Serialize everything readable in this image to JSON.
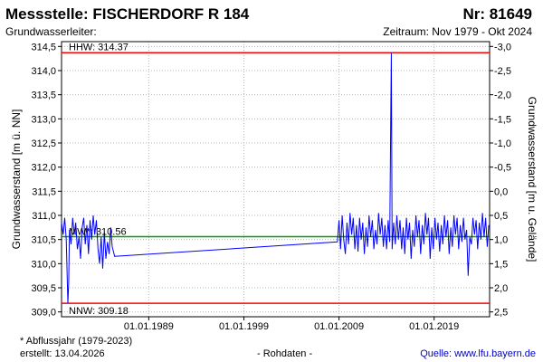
{
  "header": {
    "station_label": "Messstelle: FISCHERDORF R 184",
    "number_label": "Nr: 81649",
    "aquifer_label": "Grundwasserleiter:",
    "period_label": "Zeitraum: Nov 1979 - Okt 2024"
  },
  "footer": {
    "note": "* Abflussjahr (1979-2023)",
    "created": "erstellt:  13.04.2026",
    "rawdata": "- Rohdaten -",
    "source": "Quelle: www.lfu.bayern.de"
  },
  "chart_data": {
    "type": "line",
    "ylabel_left": "Grundwasserstand [m ü. NN]",
    "ylabel_right": "Grundwasserstand [m u. Gelände]",
    "ylim": [
      308.9,
      314.6
    ],
    "yticks_left": [
      "309,0",
      "309,5",
      "310,0",
      "310,5",
      "311,0",
      "311,5",
      "312,0",
      "312,5",
      "313,0",
      "313,5",
      "314,0",
      "314,5"
    ],
    "yticks_right": [
      "2,5",
      "2,0",
      "1,5",
      "1,0",
      "0,5",
      "0,0",
      "-0,5",
      "-1,0",
      "-1,5",
      "-2,0",
      "-2,5",
      "-3,0"
    ],
    "xlim": [
      "1979-11-01",
      "2024-10-31"
    ],
    "xticks": [
      "01.01.1989",
      "01.01.1999",
      "01.01.2009",
      "01.01.2019"
    ],
    "reference_lines": [
      {
        "label": "HHW: 314.37",
        "value": 314.37,
        "color": "#ff0000"
      },
      {
        "label": "MW*: 310.56",
        "value": 310.56,
        "color": "#00a000"
      },
      {
        "label": "NNW: 309.18",
        "value": 309.18,
        "color": "#ff0000"
      }
    ],
    "series": [
      {
        "color": "#0000ff",
        "points": [
          [
            "1979-11-01",
            310.85
          ],
          [
            "1980-01-01",
            310.6
          ],
          [
            "1980-03-01",
            310.95
          ],
          [
            "1980-05-01",
            310.5
          ],
          [
            "1980-07-01",
            309.18
          ],
          [
            "1980-08-01",
            309.6
          ],
          [
            "1980-09-01",
            310.7
          ],
          [
            "1980-11-01",
            310.4
          ],
          [
            "1981-01-01",
            310.95
          ],
          [
            "1981-03-01",
            310.6
          ],
          [
            "1981-05-01",
            310.85
          ],
          [
            "1981-07-01",
            310.3
          ],
          [
            "1981-09-01",
            310.55
          ],
          [
            "1981-11-01",
            310.1
          ],
          [
            "1982-01-01",
            310.75
          ],
          [
            "1982-03-01",
            310.95
          ],
          [
            "1982-05-01",
            310.4
          ],
          [
            "1982-07-01",
            310.8
          ],
          [
            "1982-09-01",
            310.2
          ],
          [
            "1982-11-01",
            310.9
          ],
          [
            "1983-01-01",
            310.5
          ],
          [
            "1983-03-01",
            311.0
          ],
          [
            "1983-05-01",
            310.6
          ],
          [
            "1983-07-01",
            310.9
          ],
          [
            "1983-09-01",
            310.3
          ],
          [
            "1983-11-01",
            310.0
          ],
          [
            "1984-01-01",
            310.55
          ],
          [
            "1984-03-01",
            309.9
          ],
          [
            "1984-05-01",
            310.65
          ],
          [
            "1984-07-01",
            310.1
          ],
          [
            "1984-09-01",
            310.45
          ],
          [
            "1984-11-01",
            310.2
          ],
          [
            "1985-01-01",
            310.75
          ],
          [
            "1985-03-01",
            310.35
          ],
          [
            "1985-06-01",
            310.15
          ],
          [
            "2008-11-01",
            310.45
          ],
          [
            "2009-01-01",
            310.9
          ],
          [
            "2009-03-01",
            310.3
          ],
          [
            "2009-05-01",
            311.0
          ],
          [
            "2009-07-01",
            310.5
          ],
          [
            "2009-09-01",
            310.2
          ],
          [
            "2009-11-01",
            310.85
          ],
          [
            "2010-01-01",
            310.4
          ],
          [
            "2010-03-01",
            311.05
          ],
          [
            "2010-05-01",
            310.6
          ],
          [
            "2010-07-01",
            310.95
          ],
          [
            "2010-09-01",
            310.3
          ],
          [
            "2010-11-01",
            310.8
          ],
          [
            "2011-01-01",
            310.25
          ],
          [
            "2011-03-01",
            310.95
          ],
          [
            "2011-05-01",
            310.5
          ],
          [
            "2011-07-01",
            310.85
          ],
          [
            "2011-09-01",
            310.2
          ],
          [
            "2011-11-01",
            310.75
          ],
          [
            "2012-01-01",
            310.35
          ],
          [
            "2012-03-01",
            311.0
          ],
          [
            "2012-05-01",
            310.55
          ],
          [
            "2012-07-01",
            310.9
          ],
          [
            "2012-09-01",
            310.3
          ],
          [
            "2012-11-01",
            310.7
          ],
          [
            "2013-01-01",
            310.4
          ],
          [
            "2013-03-01",
            311.05
          ],
          [
            "2013-05-01",
            310.6
          ],
          [
            "2013-07-01",
            310.95
          ],
          [
            "2013-09-01",
            310.35
          ],
          [
            "2013-11-01",
            310.8
          ],
          [
            "2014-01-01",
            310.3
          ],
          [
            "2014-03-01",
            310.9
          ],
          [
            "2014-05-01",
            310.45
          ],
          [
            "2014-07-01",
            314.37
          ],
          [
            "2014-08-01",
            310.3
          ],
          [
            "2014-10-01",
            310.85
          ],
          [
            "2014-12-01",
            310.4
          ],
          [
            "2015-02-01",
            311.0
          ],
          [
            "2015-04-01",
            310.5
          ],
          [
            "2015-06-01",
            310.9
          ],
          [
            "2015-08-01",
            310.3
          ],
          [
            "2015-10-01",
            310.75
          ],
          [
            "2015-12-01",
            310.2
          ],
          [
            "2016-02-01",
            310.95
          ],
          [
            "2016-04-01",
            310.5
          ],
          [
            "2016-06-01",
            310.85
          ],
          [
            "2016-08-01",
            310.1
          ],
          [
            "2016-10-01",
            310.7
          ],
          [
            "2016-12-01",
            310.35
          ],
          [
            "2017-02-01",
            311.0
          ],
          [
            "2017-04-01",
            310.55
          ],
          [
            "2017-06-01",
            310.9
          ],
          [
            "2017-08-01",
            310.2
          ],
          [
            "2017-10-01",
            310.8
          ],
          [
            "2017-12-01",
            310.4
          ],
          [
            "2018-02-01",
            311.05
          ],
          [
            "2018-04-01",
            310.6
          ],
          [
            "2018-06-01",
            310.95
          ],
          [
            "2018-08-01",
            310.1
          ],
          [
            "2018-10-01",
            310.75
          ],
          [
            "2018-12-01",
            310.3
          ],
          [
            "2019-02-01",
            310.95
          ],
          [
            "2019-04-01",
            310.5
          ],
          [
            "2019-06-01",
            310.85
          ],
          [
            "2019-08-01",
            310.25
          ],
          [
            "2019-10-01",
            310.8
          ],
          [
            "2019-12-01",
            310.4
          ],
          [
            "2020-02-01",
            311.0
          ],
          [
            "2020-04-01",
            310.55
          ],
          [
            "2020-06-01",
            310.9
          ],
          [
            "2020-08-01",
            310.2
          ],
          [
            "2020-10-01",
            310.75
          ],
          [
            "2020-12-01",
            310.35
          ],
          [
            "2021-02-01",
            311.0
          ],
          [
            "2021-04-01",
            310.6
          ],
          [
            "2021-06-01",
            310.95
          ],
          [
            "2021-08-01",
            310.3
          ],
          [
            "2021-10-01",
            310.8
          ],
          [
            "2021-12-01",
            310.45
          ],
          [
            "2022-02-01",
            310.95
          ],
          [
            "2022-04-01",
            310.5
          ],
          [
            "2022-06-01",
            310.7
          ],
          [
            "2022-08-01",
            309.75
          ],
          [
            "2022-10-01",
            310.55
          ],
          [
            "2022-12-01",
            310.4
          ],
          [
            "2023-02-01",
            310.95
          ],
          [
            "2023-04-01",
            310.6
          ],
          [
            "2023-06-01",
            310.9
          ],
          [
            "2023-08-01",
            310.3
          ],
          [
            "2023-10-01",
            310.85
          ],
          [
            "2023-12-01",
            310.5
          ],
          [
            "2024-02-01",
            311.05
          ],
          [
            "2024-04-01",
            310.55
          ],
          [
            "2024-06-01",
            310.95
          ],
          [
            "2024-08-01",
            310.35
          ],
          [
            "2024-10-01",
            310.8
          ]
        ]
      }
    ]
  }
}
